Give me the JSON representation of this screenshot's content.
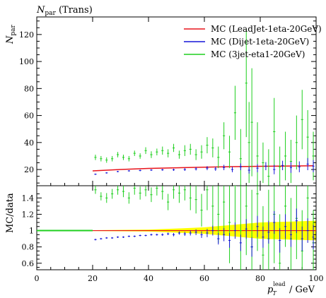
{
  "chart_data": {
    "type": "line",
    "title": {
      "main": "N",
      "sub": "par",
      "rest": " (Trans)"
    },
    "ylabel": {
      "main": "N",
      "sub": "par"
    },
    "xlabel": {
      "main": "p",
      "sub": "T",
      "sup": "lead",
      "rest": " / GeV"
    },
    "ratio_ylabel": "MC/data",
    "xlim": [
      0,
      100
    ],
    "ylim": [
      8,
      133
    ],
    "ratio_ylim": [
      0.52,
      1.55
    ],
    "x_ticks": [
      "0",
      "20",
      "40",
      "60",
      "80",
      "100"
    ],
    "y_ticks": [
      "20",
      "40",
      "60",
      "80",
      "100",
      "120"
    ],
    "ratio_ticks": [
      "0.6",
      "0.8",
      "1",
      "1.2",
      "1.4"
    ],
    "legend_position": "top-right",
    "colors": {
      "red": "#e8131b",
      "blue": "#1515d9",
      "green": "#1fcf1f",
      "band": "#ffff00"
    },
    "series": [
      {
        "name": "MC (LeadJet-1eta-20GeV)",
        "color": "#e8131b",
        "style": "line",
        "x": [
          20,
          30,
          40,
          50,
          60,
          70,
          80,
          90,
          99
        ],
        "y": [
          19.0,
          20.0,
          20.8,
          21.3,
          21.7,
          22.1,
          22.4,
          22.6,
          22.8
        ]
      },
      {
        "name": "MC (Dijet-1eta-20GeV)",
        "color": "#1515d9",
        "style": "points",
        "x": [
          21,
          25,
          29,
          33,
          37,
          41,
          45,
          49,
          53,
          57,
          61,
          64,
          67,
          70,
          73,
          76,
          79,
          82,
          85,
          88,
          91,
          94,
          97,
          99
        ],
        "y": [
          16.5,
          17.5,
          18.5,
          19.0,
          19.3,
          19.6,
          19.8,
          19.8,
          20.0,
          20.5,
          21.0,
          20.5,
          21.5,
          20.0,
          22.0,
          19.5,
          21.0,
          22.5,
          20.0,
          23.0,
          21.5,
          22.0,
          24.0,
          22.5
        ],
        "err": [
          0.5,
          0.5,
          0.5,
          0.5,
          0.6,
          0.6,
          0.7,
          0.8,
          1.0,
          1.2,
          1.5,
          1.5,
          2.0,
          2.0,
          2.5,
          2.5,
          3.0,
          3.0,
          3.5,
          3.5,
          4.0,
          4.0,
          4.5,
          4.5
        ]
      },
      {
        "name": "MC (3jet-eta1-20GeV)",
        "color": "#1fcf1f",
        "style": "points",
        "x": [
          21,
          23,
          25,
          27,
          29,
          31,
          33,
          35,
          37,
          39,
          41,
          43,
          45,
          47,
          49,
          51,
          53,
          55,
          57,
          59,
          61,
          63,
          65,
          67,
          69,
          71,
          73,
          75,
          76,
          77,
          79,
          81,
          83,
          85,
          87,
          89,
          91,
          93,
          95,
          97,
          99
        ],
        "y": [
          29,
          28,
          27,
          28,
          31,
          29,
          28,
          32,
          30,
          34,
          31,
          33,
          34,
          32,
          36,
          31,
          34,
          35,
          31,
          33,
          38,
          36,
          29,
          45,
          33,
          62,
          28,
          84,
          40,
          55,
          30,
          25,
          15,
          48,
          22,
          30,
          26,
          40,
          57,
          44,
          30
        ],
        "err": [
          2,
          2,
          2,
          2,
          2,
          2,
          2,
          2,
          2,
          2.5,
          2.5,
          2.5,
          3,
          3,
          3,
          3,
          4,
          4,
          4,
          5,
          6,
          7,
          8,
          10,
          12,
          20,
          22,
          40,
          30,
          40,
          25,
          15,
          20,
          25,
          15,
          18,
          16,
          20,
          22,
          20,
          18
        ]
      }
    ],
    "ratio": {
      "band": {
        "x": [
          20,
          40,
          50,
          60,
          70,
          80,
          90,
          100
        ],
        "half_width": [
          0.005,
          0.012,
          0.025,
          0.04,
          0.07,
          0.1,
          0.11,
          0.12
        ]
      },
      "blue": {
        "x": [
          21,
          23,
          25,
          27,
          29,
          31,
          33,
          35,
          37,
          39,
          41,
          43,
          45,
          47,
          49,
          51,
          53,
          55,
          57,
          59,
          61,
          63,
          65,
          67,
          69,
          71,
          73,
          75,
          77,
          79,
          81,
          83,
          85,
          87,
          89,
          91,
          93,
          95,
          97,
          99
        ],
        "y": [
          0.89,
          0.9,
          0.91,
          0.91,
          0.92,
          0.92,
          0.93,
          0.93,
          0.94,
          0.94,
          0.95,
          0.95,
          0.95,
          0.96,
          0.95,
          0.97,
          0.96,
          0.97,
          0.98,
          0.95,
          0.97,
          1.0,
          0.9,
          0.95,
          0.88,
          1.0,
          0.85,
          1.02,
          0.8,
          1.05,
          0.92,
          0.98,
          1.1,
          0.88,
          1.05,
          0.95,
          1.12,
          0.9,
          1.0,
          0.92
        ],
        "err": [
          0.01,
          0.01,
          0.01,
          0.01,
          0.01,
          0.01,
          0.01,
          0.01,
          0.01,
          0.01,
          0.012,
          0.012,
          0.015,
          0.015,
          0.02,
          0.02,
          0.025,
          0.03,
          0.035,
          0.04,
          0.05,
          0.06,
          0.07,
          0.08,
          0.09,
          0.1,
          0.1,
          0.12,
          0.12,
          0.13,
          0.13,
          0.14,
          0.14,
          0.15,
          0.15,
          0.15,
          0.15,
          0.15,
          0.15,
          0.15
        ]
      },
      "green": {
        "x": [
          21,
          23,
          25,
          27,
          29,
          31,
          33,
          35,
          37,
          39,
          41,
          43,
          45,
          47,
          49,
          51,
          53,
          55,
          57,
          59,
          61,
          63,
          65,
          67,
          69,
          71,
          73,
          75,
          77,
          79,
          81,
          83,
          85,
          87,
          89,
          91,
          93,
          95,
          97,
          99
        ],
        "y": [
          1.5,
          1.42,
          1.4,
          1.45,
          1.5,
          1.48,
          1.4,
          1.52,
          1.46,
          1.5,
          1.44,
          1.52,
          1.48,
          1.35,
          1.5,
          1.46,
          1.5,
          1.4,
          1.38,
          1.25,
          1.5,
          1.3,
          1.2,
          1.35,
          1.1,
          1.55,
          1.0,
          1.3,
          0.8,
          1.45,
          0.7,
          0.9,
          1.2,
          0.6,
          1.3,
          0.9,
          1.15,
          0.75,
          1.4,
          0.85
        ],
        "err": [
          0.05,
          0.05,
          0.06,
          0.06,
          0.06,
          0.07,
          0.07,
          0.08,
          0.08,
          0.08,
          0.09,
          0.09,
          0.1,
          0.1,
          0.11,
          0.12,
          0.13,
          0.15,
          0.17,
          0.2,
          0.25,
          0.3,
          0.35,
          0.4,
          0.5,
          0.5,
          0.6,
          0.6,
          0.7,
          0.7,
          0.6,
          0.6,
          0.6,
          0.6,
          0.5,
          0.5,
          0.5,
          0.5,
          0.4,
          0.4
        ]
      },
      "red_line": {
        "x": [
          20,
          100
        ],
        "y": [
          1.0,
          1.0
        ]
      },
      "green_line": {
        "x": [
          0,
          20
        ],
        "y": [
          1.0,
          1.0
        ]
      }
    }
  }
}
